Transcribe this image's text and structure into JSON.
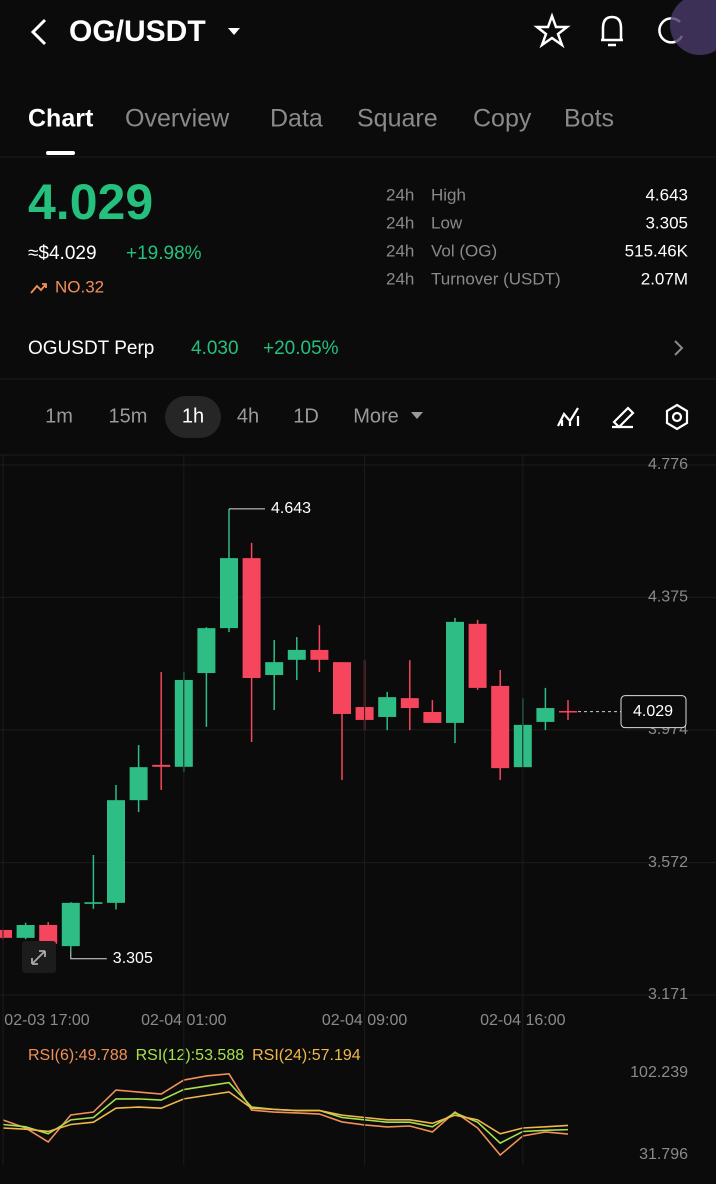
{
  "header": {
    "title": "OG/USDT"
  },
  "tabs": [
    "Chart",
    "Overview",
    "Data",
    "Square",
    "Copy",
    "Bots"
  ],
  "active_tab": 0,
  "ticker": {
    "price": "4.029",
    "usd_price": "≈$4.029",
    "change": "+19.98%",
    "rank": "NO.32"
  },
  "stats": [
    {
      "period": "24h",
      "label": "High",
      "value": "4.643"
    },
    {
      "period": "24h",
      "label": "Low",
      "value": "3.305"
    },
    {
      "period": "24h",
      "label": "Vol (OG)",
      "value": "515.46K"
    },
    {
      "period": "24h",
      "label": "Turnover (USDT)",
      "value": "2.07M"
    }
  ],
  "perp": {
    "name": "OGUSDT Perp",
    "price": "4.030",
    "change": "+20.05%"
  },
  "intervals": [
    "1m",
    "15m",
    "1h",
    "4h",
    "1D",
    "More"
  ],
  "active_interval": 2,
  "chart": {
    "type": "candlestick",
    "categories": [
      "02-03 17:00",
      null,
      null,
      null,
      null,
      null,
      null,
      null,
      "02-04 01:00",
      null,
      null,
      null,
      null,
      null,
      null,
      null,
      "02-04 09:00",
      null,
      null,
      null,
      null,
      null,
      null,
      "02-04 16:00",
      null,
      null
    ],
    "candles": [
      {
        "open": 3.368,
        "high": 3.37,
        "low": 3.34,
        "close": 3.344
      },
      {
        "open": 3.344,
        "high": 3.39,
        "low": 3.34,
        "close": 3.383
      },
      {
        "open": 3.383,
        "high": 3.392,
        "low": 3.308,
        "close": 3.326
      },
      {
        "open": 3.319,
        "high": 3.452,
        "low": 3.305,
        "close": 3.45
      },
      {
        "open": 3.447,
        "high": 3.595,
        "low": 3.432,
        "close": 3.452
      },
      {
        "open": 3.45,
        "high": 3.807,
        "low": 3.43,
        "close": 3.761
      },
      {
        "open": 3.761,
        "high": 3.928,
        "low": 3.725,
        "close": 3.861
      },
      {
        "open": 3.868,
        "high": 4.149,
        "low": 3.792,
        "close": 3.862
      },
      {
        "open": 3.862,
        "high": 4.149,
        "low": 3.846,
        "close": 4.125
      },
      {
        "open": 4.146,
        "high": 4.285,
        "low": 3.983,
        "close": 4.282
      },
      {
        "open": 4.282,
        "high": 4.643,
        "low": 4.27,
        "close": 4.494
      },
      {
        "open": 4.494,
        "high": 4.54,
        "low": 3.937,
        "close": 4.131
      },
      {
        "open": 4.14,
        "high": 4.246,
        "low": 4.034,
        "close": 4.179
      },
      {
        "open": 4.186,
        "high": 4.255,
        "low": 4.125,
        "close": 4.216
      },
      {
        "open": 4.216,
        "high": 4.291,
        "low": 4.149,
        "close": 4.186
      },
      {
        "open": 4.179,
        "high": 4.179,
        "low": 3.822,
        "close": 4.022
      },
      {
        "open": 4.043,
        "high": 4.185,
        "low": 3.973,
        "close": 4.004
      },
      {
        "open": 4.013,
        "high": 4.089,
        "low": 3.973,
        "close": 4.073
      },
      {
        "open": 4.07,
        "high": 4.185,
        "low": 3.973,
        "close": 4.04
      },
      {
        "open": 4.028,
        "high": 4.064,
        "low": 3.995,
        "close": 3.995
      },
      {
        "open": 3.995,
        "high": 4.313,
        "low": 3.934,
        "close": 4.301
      },
      {
        "open": 4.295,
        "high": 4.307,
        "low": 4.095,
        "close": 4.101
      },
      {
        "open": 4.107,
        "high": 4.155,
        "low": 3.822,
        "close": 3.858
      },
      {
        "open": 3.861,
        "high": 4.07,
        "low": 3.861,
        "close": 3.989
      },
      {
        "open": 3.998,
        "high": 4.101,
        "low": 3.973,
        "close": 4.04
      },
      {
        "open": 4.031,
        "high": 4.064,
        "low": 4.004,
        "close": 4.029
      }
    ],
    "up_color": "#2ebd85",
    "down_color": "#f6465d",
    "ylim": [
      3.171,
      4.776
    ],
    "yticks": [
      4.776,
      4.375,
      3.974,
      3.572,
      3.171
    ],
    "grid": true,
    "high": 4.643,
    "low": 3.305,
    "last_price": 4.029
  },
  "rsi": {
    "type": "line",
    "series": [
      {
        "name": "RSI(6):49.788",
        "color": "#f0905a",
        "values": [
          61.9,
          55.0,
          43.0,
          66.2,
          68.7,
          87.6,
          85.9,
          84.2,
          96.2,
          99.7,
          101.5,
          70.4,
          68.7,
          67.9,
          67.0,
          60.2,
          57.6,
          55.9,
          56.7,
          51.6,
          68.7,
          55.0,
          31.8,
          48.1,
          51.6,
          49.788
        ]
      },
      {
        "name": "RSI(12):53.588",
        "color": "#a6e04c",
        "values": [
          58,
          56,
          50,
          62,
          64,
          80,
          80,
          79,
          88,
          91,
          94,
          73,
          71,
          70,
          70,
          64,
          62,
          60,
          60,
          56,
          68,
          60,
          42,
          52,
          53,
          53.588
        ]
      },
      {
        "name": "RSI(24):57.194",
        "color": "#f0b84a",
        "values": [
          55,
          54,
          52,
          58,
          60,
          72,
          73,
          72,
          80,
          83,
          86,
          72,
          71,
          70,
          70,
          66,
          64,
          62,
          62,
          59,
          66,
          62,
          50,
          55,
          56,
          57.194
        ]
      }
    ],
    "ylim": [
      31.796,
      102.239
    ],
    "yticks": [
      102.239,
      31.796
    ]
  }
}
